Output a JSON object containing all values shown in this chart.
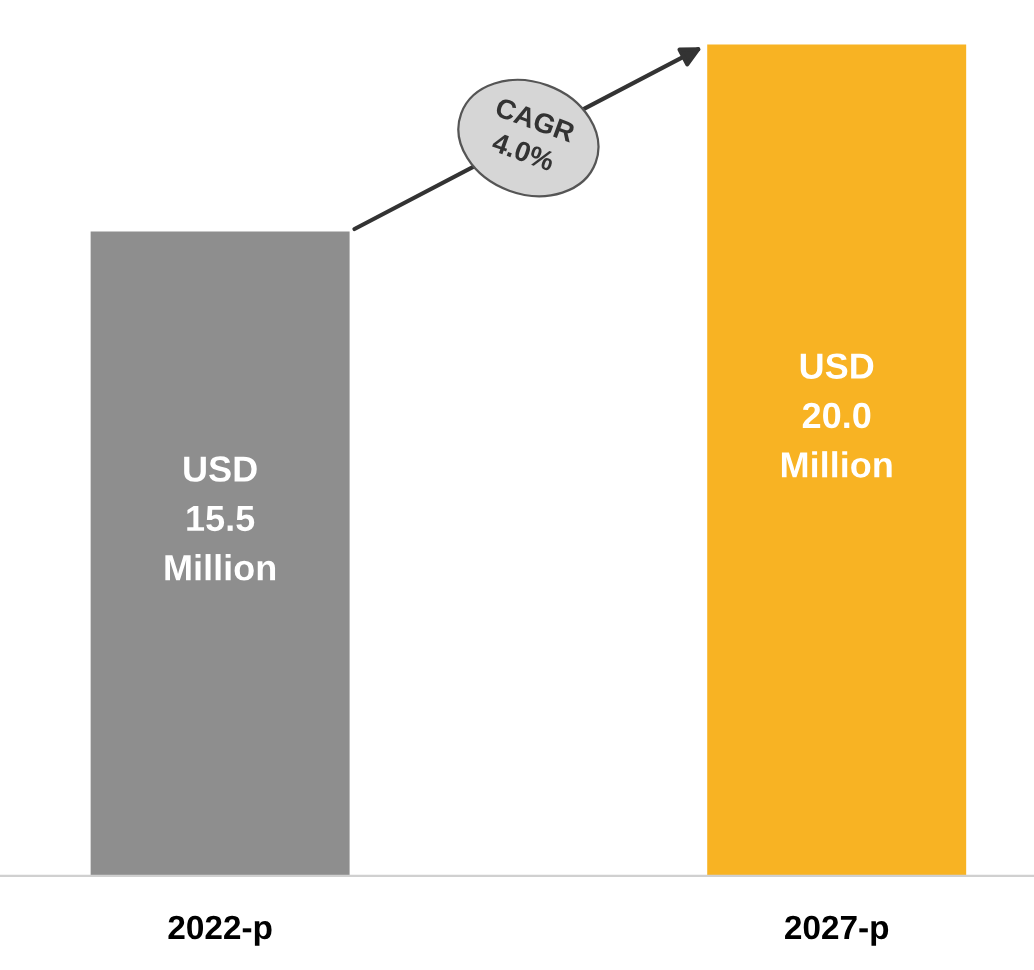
{
  "chart_data": {
    "type": "bar",
    "categories": [
      "2022-p",
      "2027-p"
    ],
    "values": [
      15.5,
      20.0
    ],
    "colors": [
      "#8e8e8e",
      "#f8b323"
    ],
    "value_labels": [
      "USD\n15.5\nMillion",
      "USD\n20.0\nMillion"
    ],
    "annotations": [
      "CAGR\n4.0%"
    ]
  }
}
